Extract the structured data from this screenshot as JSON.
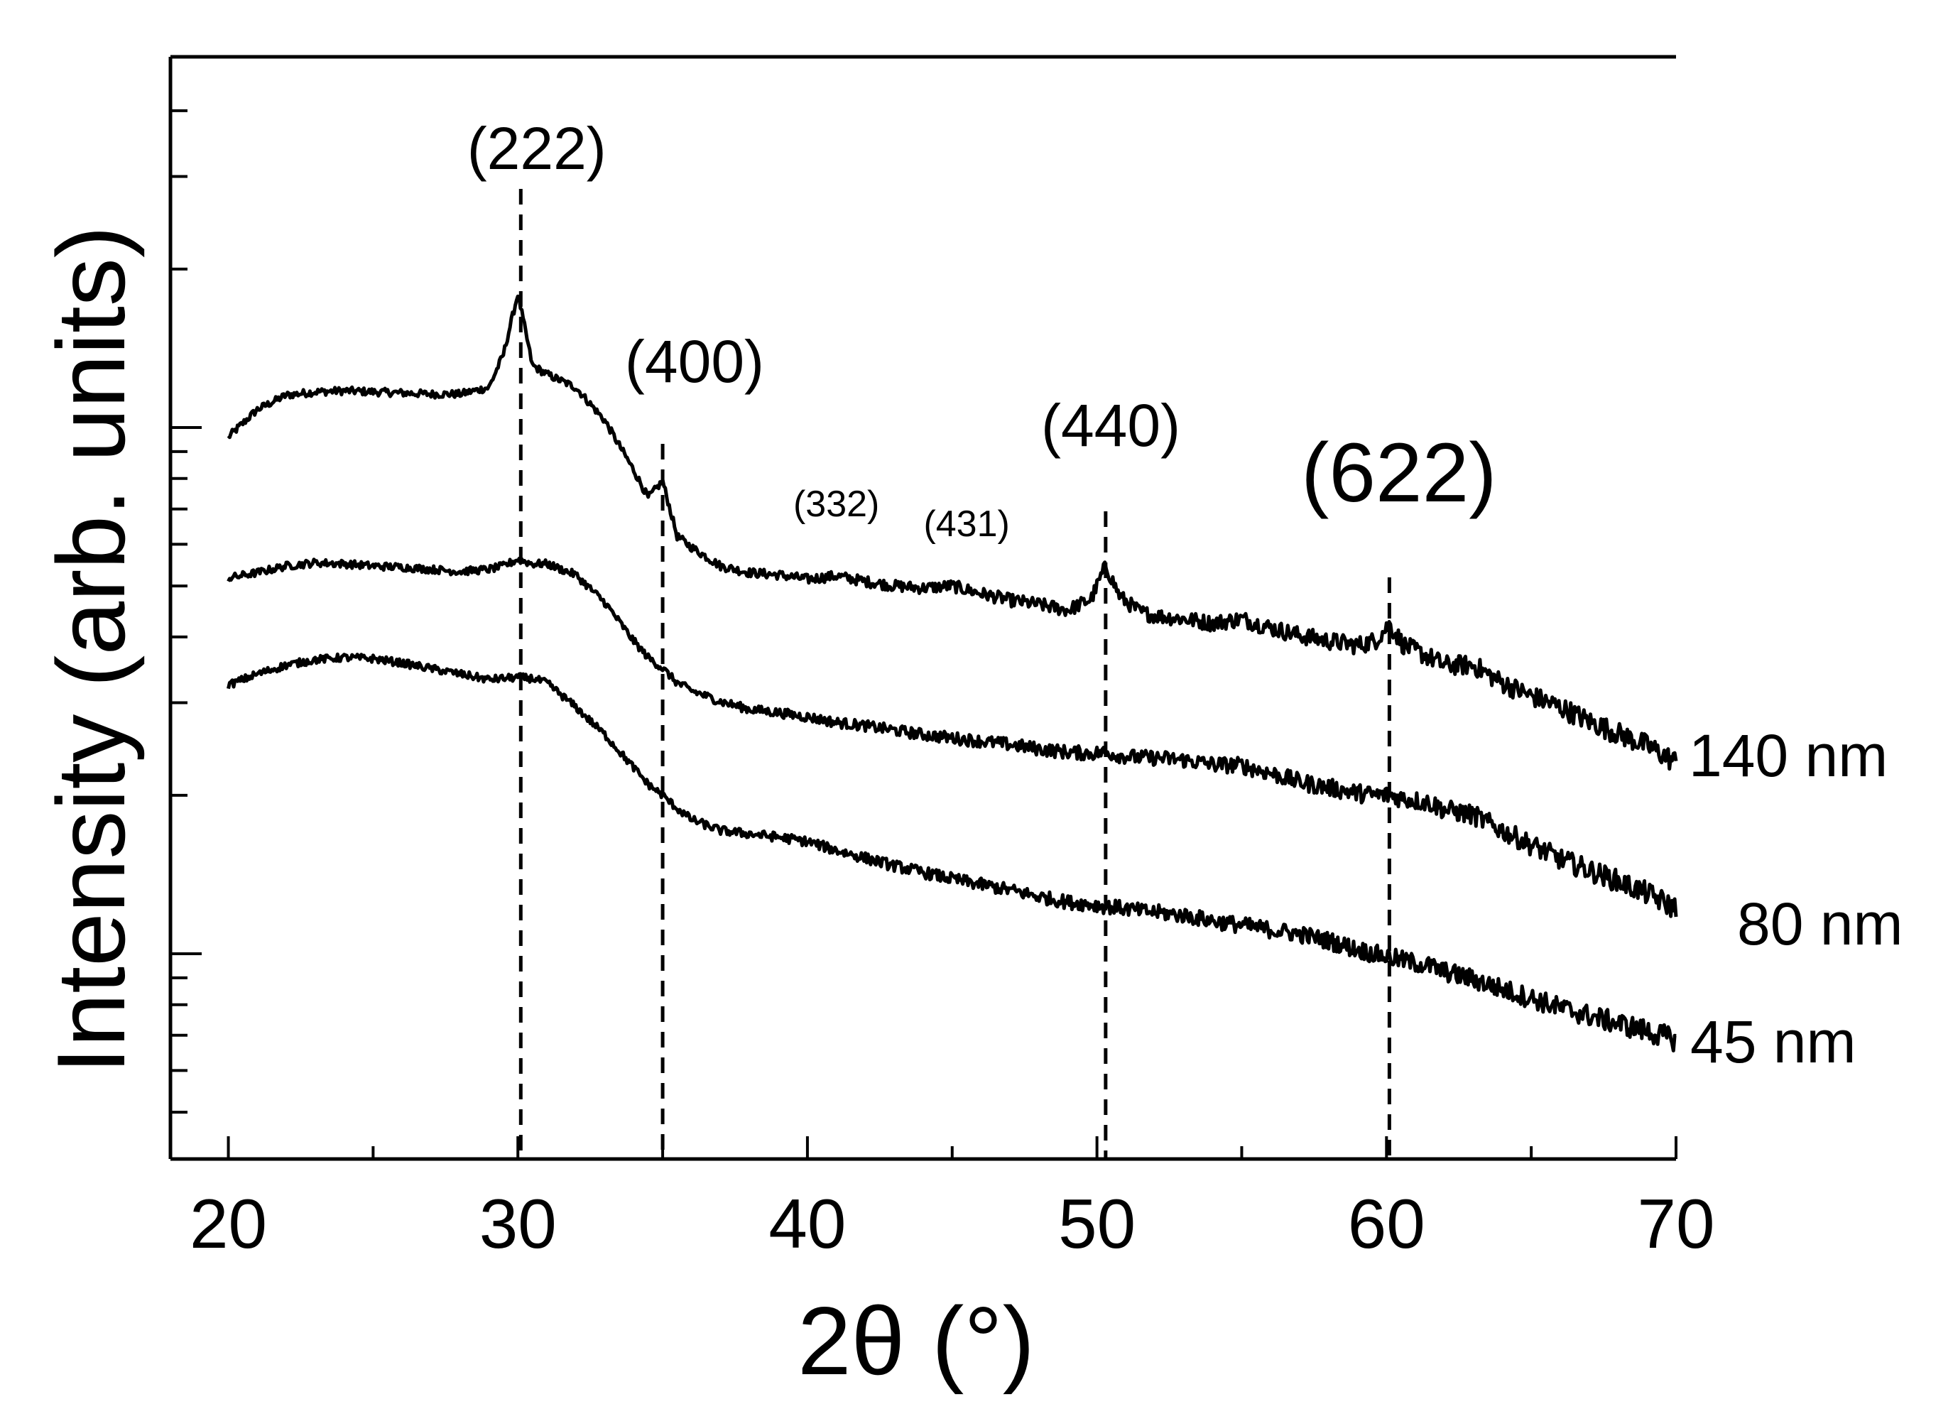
{
  "chart_data": {
    "type": "line",
    "title": "",
    "xlabel": "2θ (°)",
    "ylabel": "Intensity (arb. units)",
    "xlim": [
      18,
      70
    ],
    "ylim": [
      0,
      1
    ],
    "y_scale": "log",
    "grid": false,
    "legend": "none",
    "x_ticks": [
      20,
      30,
      40,
      50,
      60,
      70
    ],
    "x_tick_labels": [
      "20",
      "30",
      "40",
      "50",
      "60",
      "70"
    ],
    "y_tick_labels_shown": false,
    "x": [
      20,
      21,
      22,
      23,
      24,
      25,
      26,
      27,
      28,
      29,
      29.5,
      30,
      30.5,
      31,
      32,
      33,
      34,
      34.5,
      35,
      35.5,
      36,
      37,
      38,
      39,
      40,
      41,
      42,
      43,
      44,
      45,
      46,
      47,
      48,
      49,
      49.8,
      50.3,
      50.8,
      51.5,
      52,
      53,
      54,
      55,
      56,
      57,
      58,
      59,
      59.6,
      60.1,
      60.6,
      61.5,
      62,
      63,
      64,
      65,
      66,
      67,
      68,
      69,
      70
    ],
    "series": [
      {
        "name": "140 nm",
        "values": [
          0.655,
          0.68,
          0.693,
          0.696,
          0.697,
          0.696,
          0.695,
          0.694,
          0.694,
          0.7,
          0.73,
          0.785,
          0.72,
          0.712,
          0.7,
          0.67,
          0.625,
          0.6,
          0.615,
          0.565,
          0.555,
          0.538,
          0.532,
          0.53,
          0.526,
          0.529,
          0.524,
          0.52,
          0.518,
          0.52,
          0.513,
          0.507,
          0.503,
          0.498,
          0.508,
          0.538,
          0.51,
          0.496,
          0.493,
          0.49,
          0.486,
          0.49,
          0.482,
          0.475,
          0.47,
          0.466,
          0.47,
          0.485,
          0.466,
          0.455,
          0.448,
          0.448,
          0.432,
          0.42,
          0.41,
          0.397,
          0.386,
          0.375,
          0.36
        ]
      },
      {
        "name": "80 nm",
        "values": [
          0.527,
          0.532,
          0.538,
          0.541,
          0.54,
          0.538,
          0.537,
          0.535,
          0.533,
          0.535,
          0.538,
          0.544,
          0.54,
          0.54,
          0.53,
          0.505,
          0.47,
          0.455,
          0.445,
          0.432,
          0.425,
          0.415,
          0.408,
          0.405,
          0.401,
          0.396,
          0.393,
          0.389,
          0.385,
          0.382,
          0.379,
          0.376,
          0.372,
          0.369,
          0.368,
          0.369,
          0.366,
          0.364,
          0.364,
          0.362,
          0.358,
          0.357,
          0.35,
          0.342,
          0.337,
          0.332,
          0.33,
          0.33,
          0.327,
          0.323,
          0.317,
          0.312,
          0.298,
          0.285,
          0.272,
          0.262,
          0.252,
          0.241,
          0.227
        ]
      },
      {
        "name": "45 nm",
        "values": [
          0.43,
          0.44,
          0.448,
          0.453,
          0.455,
          0.454,
          0.45,
          0.445,
          0.44,
          0.435,
          0.436,
          0.437,
          0.436,
          0.432,
          0.41,
          0.385,
          0.355,
          0.34,
          0.33,
          0.318,
          0.308,
          0.298,
          0.295,
          0.292,
          0.288,
          0.28,
          0.273,
          0.266,
          0.26,
          0.254,
          0.249,
          0.244,
          0.238,
          0.233,
          0.231,
          0.229,
          0.228,
          0.225,
          0.224,
          0.221,
          0.216,
          0.212,
          0.208,
          0.204,
          0.198,
          0.19,
          0.186,
          0.183,
          0.18,
          0.175,
          0.17,
          0.163,
          0.154,
          0.146,
          0.137,
          0.13,
          0.123,
          0.116,
          0.108
        ]
      }
    ],
    "reference_lines": [
      {
        "x": 30.1,
        "label": "(222)"
      },
      {
        "x": 35.0,
        "label": "(400)"
      },
      {
        "x": 50.3,
        "label": "(440)"
      },
      {
        "x": 60.1,
        "label": "(622)"
      }
    ],
    "annotations": [
      {
        "label": "(332)",
        "x": 41,
        "y": 0.583
      },
      {
        "label": "(431)",
        "x": 45.5,
        "y": 0.565
      }
    ]
  }
}
